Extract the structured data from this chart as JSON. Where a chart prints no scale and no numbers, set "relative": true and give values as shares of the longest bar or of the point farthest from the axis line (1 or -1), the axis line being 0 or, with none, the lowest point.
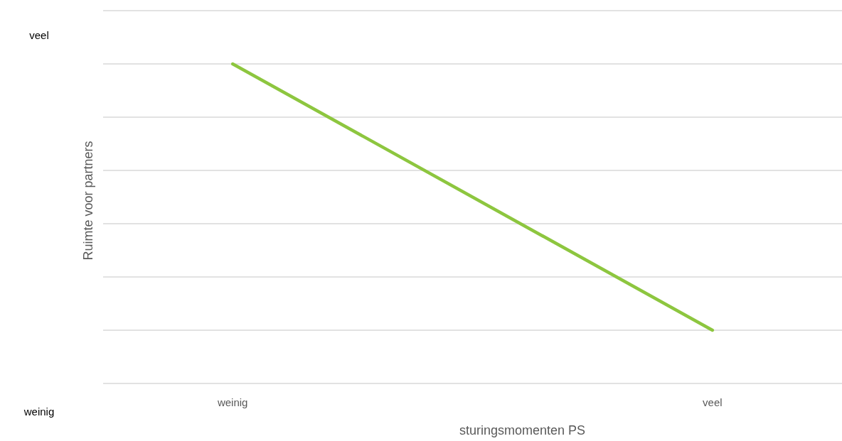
{
  "chart_data": {
    "type": "line",
    "categories": [
      "weinig",
      "veel"
    ],
    "series": [
      {
        "color": "#8dc63f",
        "values": [
          1,
          0
        ]
      }
    ],
    "relative": true,
    "tick_labels": "x",
    "grid": "y",
    "marker": "none",
    "line_style": "solid",
    "xlabel": "sturingsmomenten PS",
    "ylabel": "Ruimte voor partners",
    "annotations": [
      "veel",
      "weinig"
    ]
  }
}
